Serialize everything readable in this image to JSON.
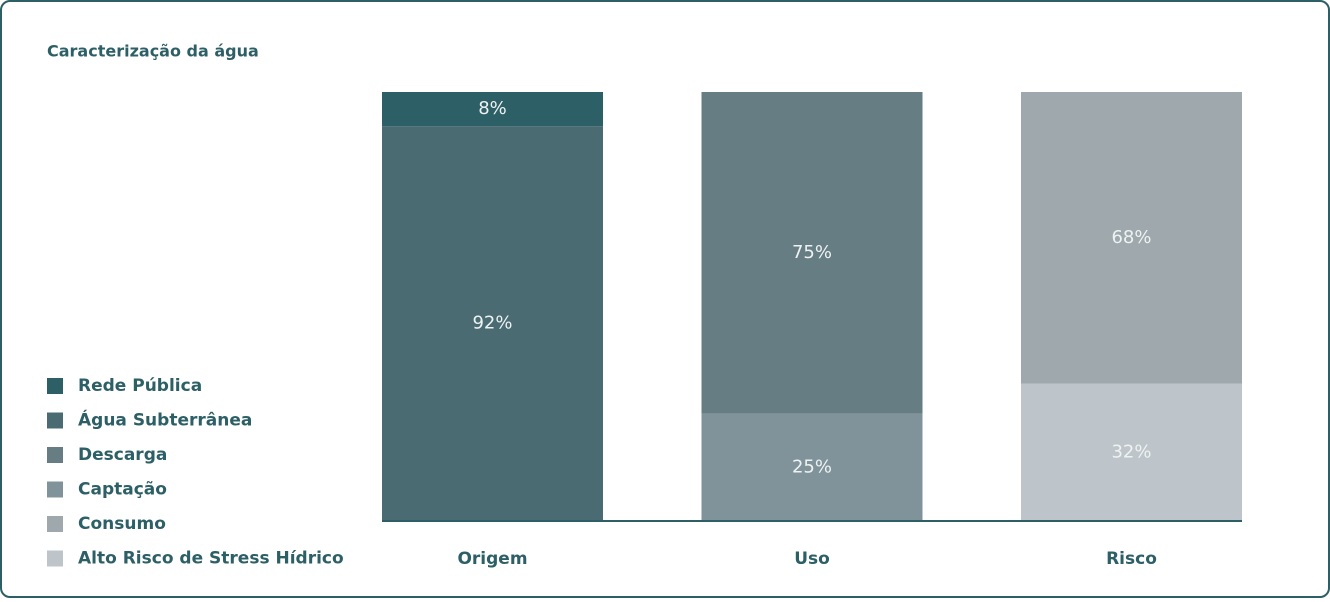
{
  "chart_data": {
    "type": "stacked-bar",
    "title": "Caracterização da água",
    "categories": [
      "Origem",
      "Uso",
      "Risco"
    ],
    "ylim": [
      0,
      100
    ],
    "series": [
      {
        "name": "Rede Pública",
        "color": "#2d5f66",
        "values": [
          8,
          null,
          null
        ],
        "value_labels": [
          "8%",
          null,
          null
        ]
      },
      {
        "name": "Água Subterrânea",
        "color": "#4b6b73",
        "values": [
          92,
          null,
          null
        ],
        "value_labels": [
          "92%",
          null,
          null
        ]
      },
      {
        "name": "Descarga",
        "color": "#667d83",
        "values": [
          null,
          75,
          null
        ],
        "value_labels": [
          null,
          "75%",
          null
        ]
      },
      {
        "name": "Captação",
        "color": "#80939a",
        "values": [
          null,
          25,
          null
        ],
        "value_labels": [
          null,
          "25%",
          null
        ]
      },
      {
        "name": "Consumo",
        "color": "#9ea8ad",
        "values": [
          null,
          null,
          68
        ],
        "value_labels": [
          null,
          null,
          "68%"
        ]
      },
      {
        "name": "Alto Risco de Stress Hídrico",
        "color": "#bec5ca",
        "values": [
          null,
          null,
          32
        ],
        "value_labels": [
          null,
          null,
          "32%"
        ]
      }
    ]
  }
}
